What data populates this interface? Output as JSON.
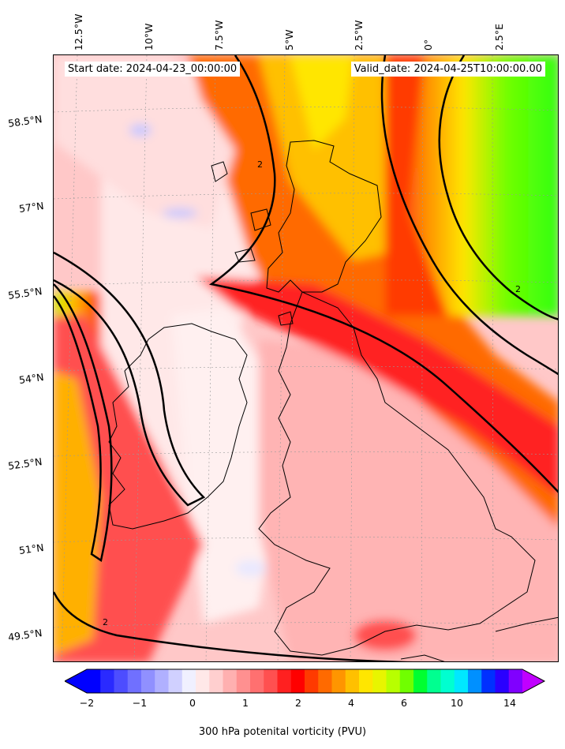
{
  "map": {
    "start_label": "Start date: 2024-04-23_00:00:00",
    "valid_label": "Valid_date: 2024-04-25T10:00:00.00",
    "lon_labels": [
      "12.5°W",
      "10°W",
      "7.5°W",
      "5°W",
      "2.5°W",
      "0°",
      "2.5°E"
    ],
    "lat_labels": [
      "58.5°N",
      "57°N",
      "55.5°N",
      "54°N",
      "52.5°N",
      "51°N",
      "49.5°N"
    ],
    "contour_label": "2"
  },
  "colorbar": {
    "label": "300 hPa potenital vorticity (PVU)",
    "ticks": [
      "−2",
      "−1",
      "0",
      "1",
      "2",
      "4",
      "6",
      "10",
      "14"
    ],
    "colors": [
      "#0000ff",
      "#2a2aff",
      "#4d4dff",
      "#7070ff",
      "#9090ff",
      "#b0b0ff",
      "#d0d0ff",
      "#f0f0ff",
      "#ffe8e8",
      "#ffcfcf",
      "#ffb0b0",
      "#ff9090",
      "#ff7070",
      "#ff5050",
      "#ff2020",
      "#ff0000",
      "#ff3a00",
      "#ff6a00",
      "#ff9500",
      "#ffc000",
      "#ffe600",
      "#e8f500",
      "#b8ff00",
      "#70ff00",
      "#00ff30",
      "#00ff90",
      "#00ffd0",
      "#00e8ff",
      "#0090ff",
      "#0030ff",
      "#2a00ff",
      "#8000ff"
    ],
    "low_color": "#0000ff",
    "high_color": "#c000ff"
  }
}
